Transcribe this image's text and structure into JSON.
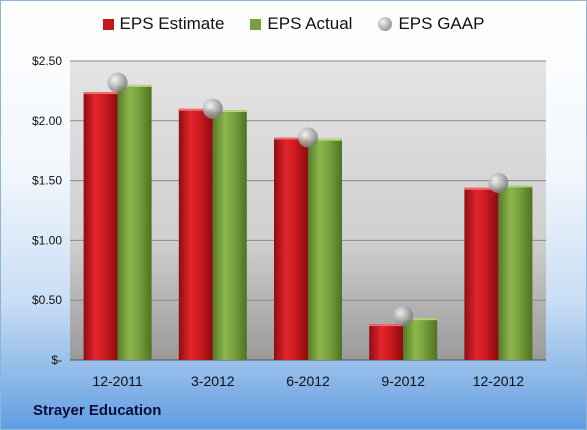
{
  "company": "Strayer Education",
  "colors": {
    "estimate": "#c8161d",
    "actual": "#75a13a",
    "gaap": "#9a9a9a"
  },
  "chart_data": {
    "type": "bar",
    "categories": [
      "12-2011",
      "3-2012",
      "6-2012",
      "9-2012",
      "12-2012"
    ],
    "series": [
      {
        "name": "EPS Estimate",
        "values": [
          2.24,
          2.1,
          1.86,
          0.3,
          1.44
        ]
      },
      {
        "name": "EPS Actual",
        "values": [
          2.3,
          2.09,
          1.85,
          0.35,
          1.46
        ]
      },
      {
        "name": "EPS GAAP",
        "values": [
          2.32,
          2.1,
          1.86,
          0.37,
          1.48
        ],
        "style": "marker"
      }
    ],
    "y_ticks": [
      "$-",
      "$0.50",
      "$1.00",
      "$1.50",
      "$2.00",
      "$2.50"
    ],
    "ylim": [
      0,
      2.5
    ],
    "legend_position": "top",
    "grid": true
  }
}
